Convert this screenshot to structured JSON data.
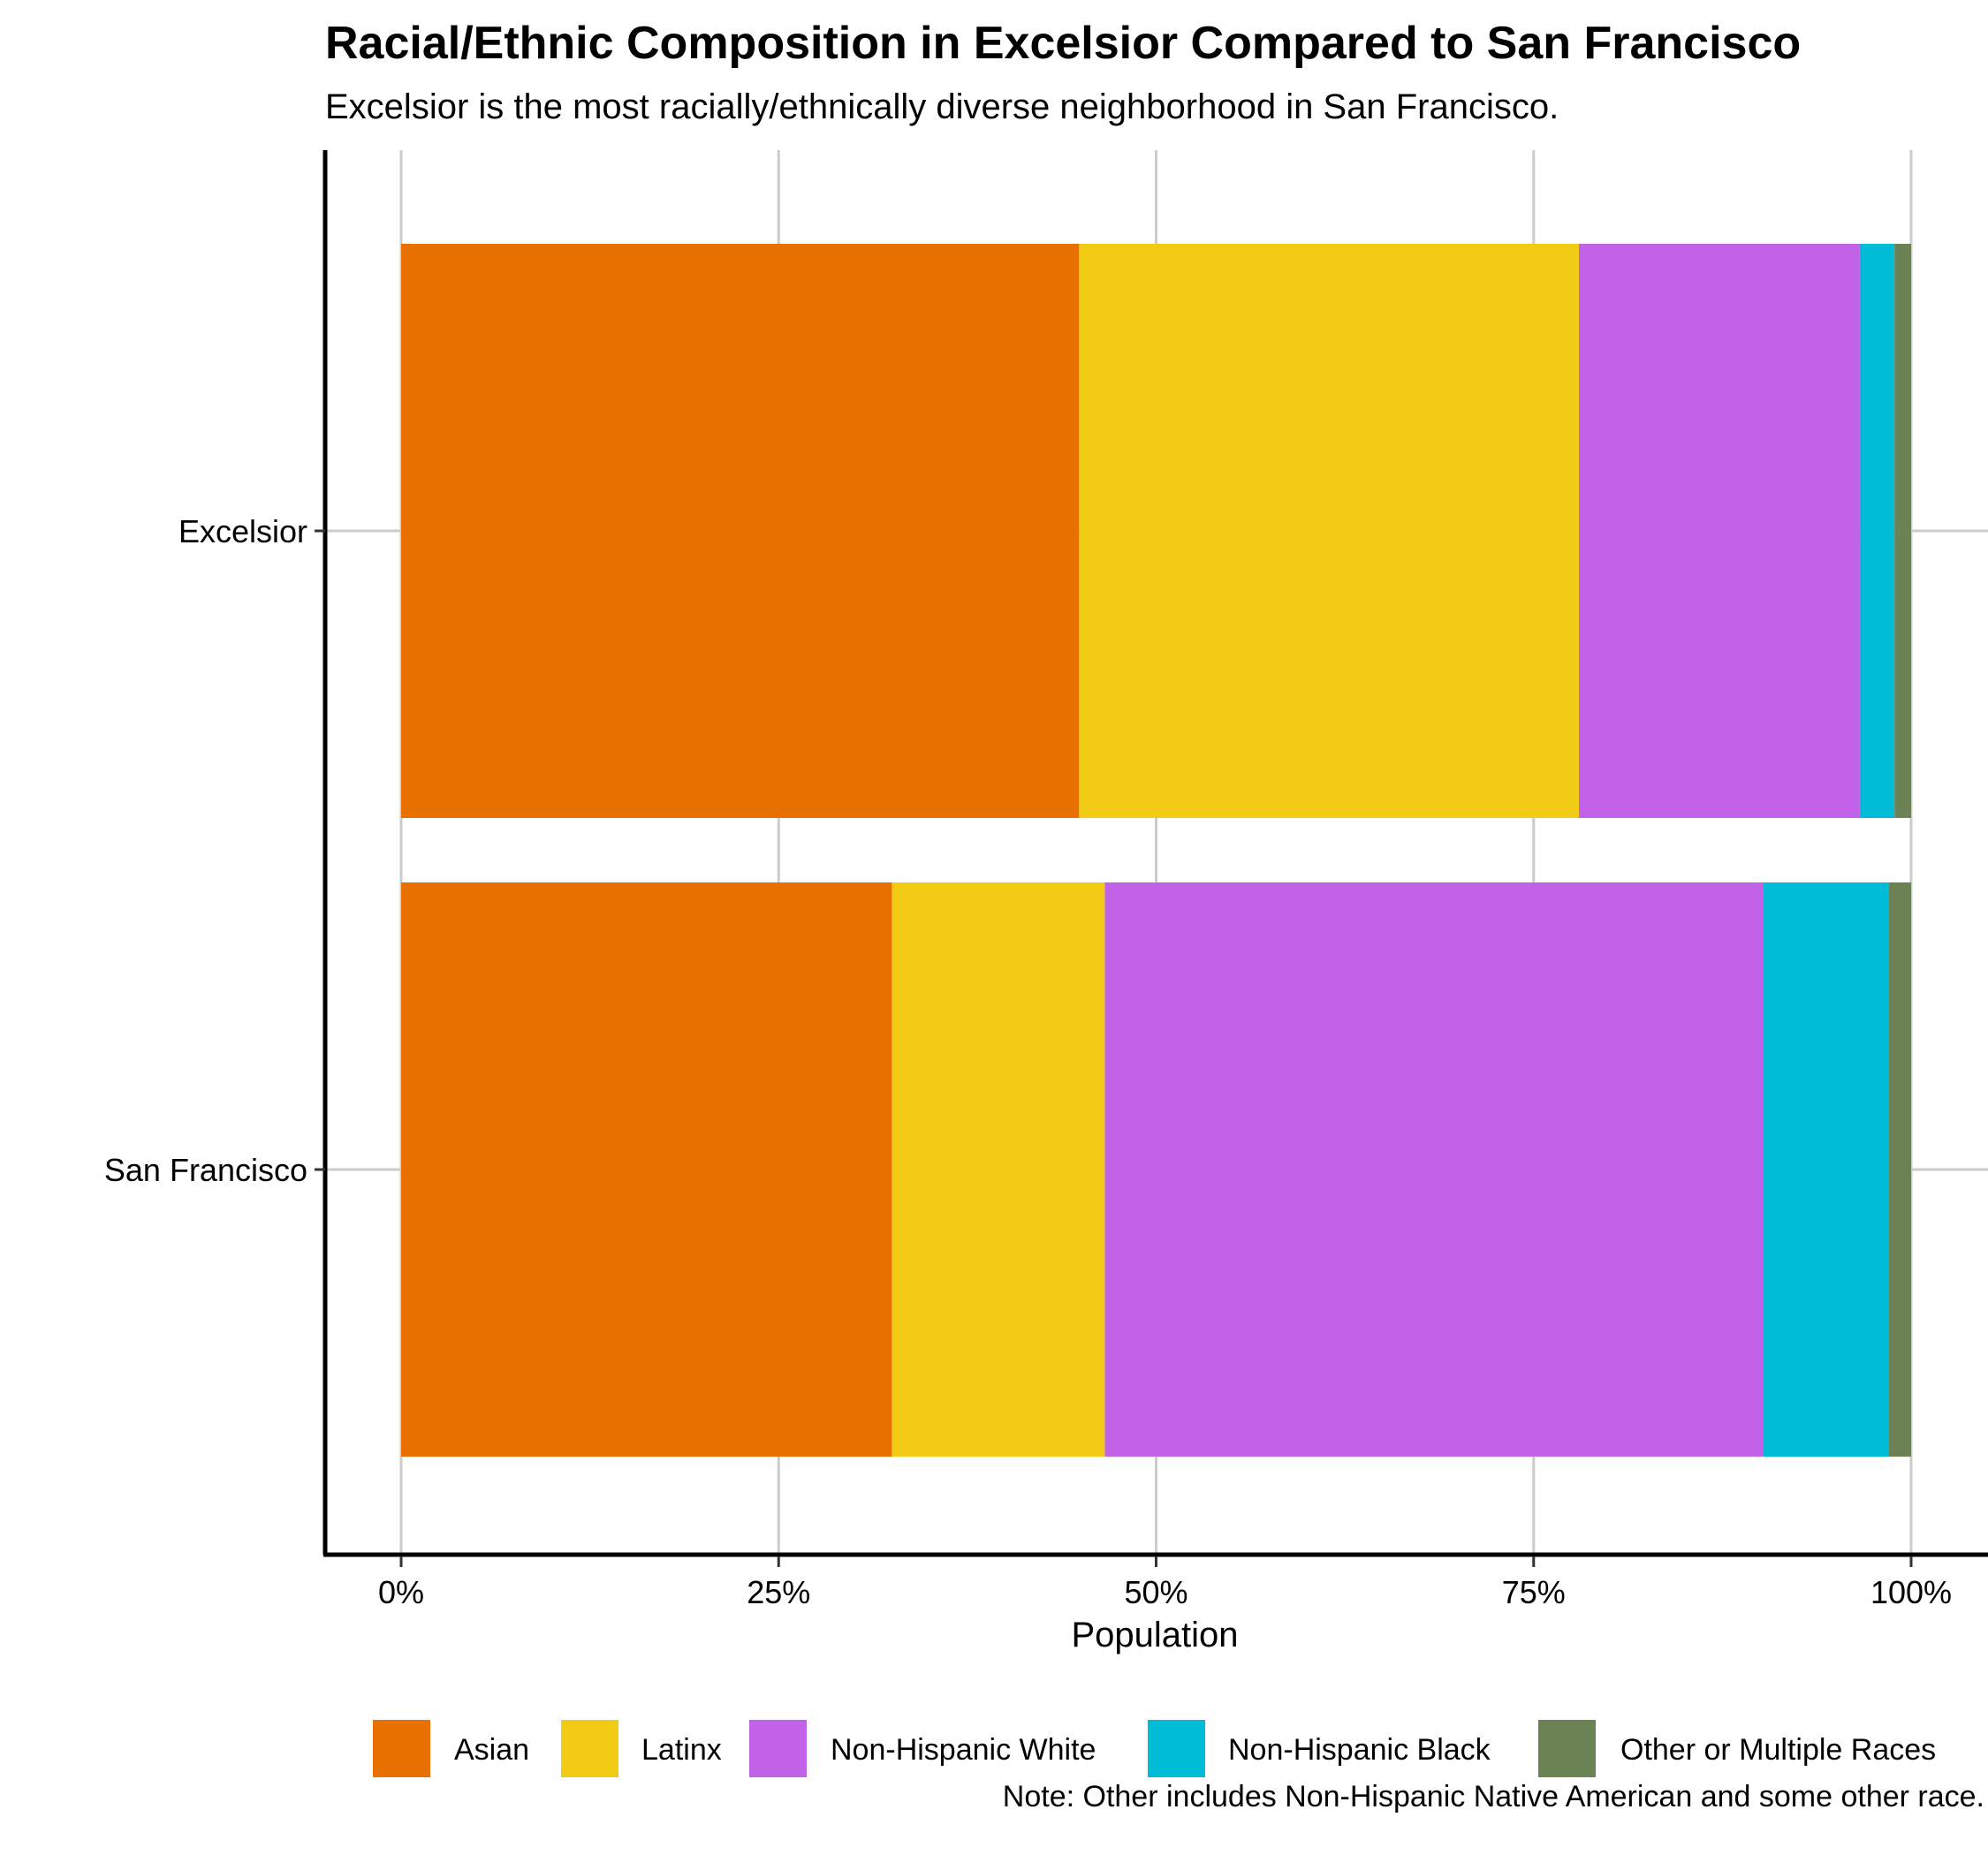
{
  "chart_data": {
    "type": "bar",
    "orientation": "horizontal",
    "stacked": true,
    "title": "Racial/Ethnic Composition in Excelsior Compared to San Francisco",
    "subtitle": "Excelsior is the most racially/ethnically diverse neighborhood in San Francisco.",
    "xlabel": "Population",
    "ylabel": "",
    "xlim": [
      0,
      1
    ],
    "x_ticks": [
      "0%",
      "25%",
      "50%",
      "75%",
      "100%"
    ],
    "x_tick_values": [
      0,
      0.25,
      0.5,
      0.75,
      1.0
    ],
    "categories": [
      "Excelsior",
      "San Francisco"
    ],
    "series": [
      {
        "name": "Asian",
        "color": "#E87000",
        "values": [
          0.449,
          0.325
        ]
      },
      {
        "name": "Latinx",
        "color": "#F2CC14",
        "values": [
          0.331,
          0.141
        ]
      },
      {
        "name": "Non-Hispanic White",
        "color": "#C262E8",
        "values": [
          0.186,
          0.436
        ]
      },
      {
        "name": "Non-Hispanic Black",
        "color": "#00BCD6",
        "values": [
          0.023,
          0.083
        ]
      },
      {
        "name": "Other or Multiple Races",
        "color": "#6B8255",
        "values": [
          0.011,
          0.015
        ]
      }
    ],
    "legend_position": "bottom",
    "grid": true,
    "note": "Note: Other includes Non-Hispanic Native American and some other race."
  }
}
